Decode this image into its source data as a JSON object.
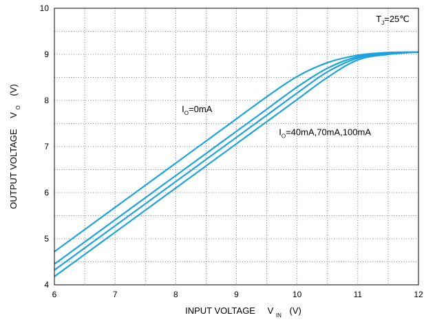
{
  "chart_data": {
    "type": "line",
    "title": "",
    "xlabel": "INPUT VOLTAGE",
    "xlabel_symbol": "V",
    "xlabel_sub": "IN",
    "xlabel_unit": "(V)",
    "ylabel": "OUTPUT VOLTAGE",
    "ylabel_symbol": "V",
    "ylabel_sub": "O",
    "ylabel_unit": "(V)",
    "xlim": [
      6,
      12
    ],
    "ylim": [
      4,
      10
    ],
    "xticks": [
      "6",
      "7",
      "8",
      "9",
      "10",
      "11",
      "12"
    ],
    "yticks": [
      "4",
      "5",
      "6",
      "7",
      "8",
      "9",
      "10"
    ],
    "grid": "dotted",
    "line_color": "#1aa3e0",
    "series": [
      {
        "x": [
          6,
          6.5,
          7,
          7.5,
          8,
          8.5,
          9,
          9.5,
          10,
          10.5,
          11,
          11.5,
          12
        ],
        "y": [
          4.72,
          5.2,
          5.68,
          6.16,
          6.64,
          7.12,
          7.6,
          8.08,
          8.52,
          8.82,
          8.98,
          9.04,
          9.05
        ]
      },
      {
        "x": [
          6,
          6.5,
          7,
          7.5,
          8,
          8.5,
          9,
          9.5,
          10,
          10.5,
          11,
          11.5,
          12
        ],
        "y": [
          4.45,
          4.93,
          5.41,
          5.89,
          6.37,
          6.85,
          7.33,
          7.81,
          8.29,
          8.7,
          8.95,
          9.03,
          9.05
        ]
      },
      {
        "x": [
          6,
          6.5,
          7,
          7.5,
          8,
          8.5,
          9,
          9.5,
          10,
          10.5,
          11,
          11.5,
          12
        ],
        "y": [
          4.32,
          4.8,
          5.28,
          5.76,
          6.24,
          6.72,
          7.2,
          7.68,
          8.16,
          8.62,
          8.92,
          9.02,
          9.05
        ]
      },
      {
        "x": [
          6,
          6.5,
          7,
          7.5,
          8,
          8.5,
          9,
          9.5,
          10,
          10.5,
          11,
          11.5,
          12
        ],
        "y": [
          4.18,
          4.66,
          5.14,
          5.62,
          6.1,
          6.58,
          7.06,
          7.54,
          8.02,
          8.5,
          8.88,
          9.0,
          9.05
        ]
      }
    ],
    "annotations": [
      {
        "symbol": "T",
        "sub": "J",
        "text": "=25℃",
        "x": 11.3,
        "y": 9.7
      },
      {
        "symbol": "I",
        "sub": "O",
        "text": "=0mA",
        "x": 8.1,
        "y": 7.75
      },
      {
        "symbol": "I",
        "sub": "O",
        "text": "=40mA,70mA,100mA",
        "x": 9.7,
        "y": 7.25
      }
    ]
  }
}
